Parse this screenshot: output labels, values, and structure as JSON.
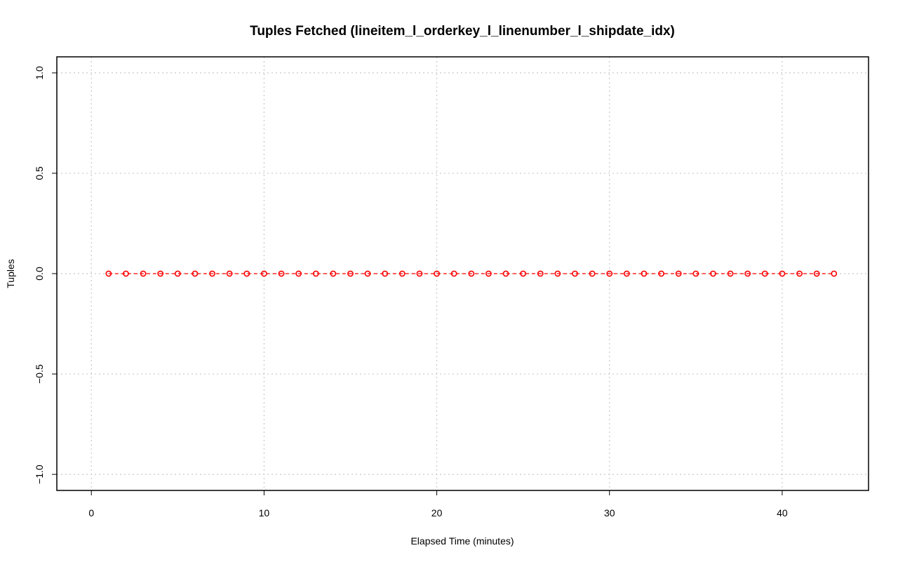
{
  "chart_data": {
    "type": "line",
    "title": "Tuples Fetched (lineitem_l_orderkey_l_linenumber_l_shipdate_idx)",
    "xlabel": "Elapsed Time (minutes)",
    "ylabel": "Tuples",
    "xlim": [
      -2,
      45
    ],
    "ylim": [
      -1.08,
      1.08
    ],
    "x_ticks": [
      0,
      10,
      20,
      30,
      40
    ],
    "x_tick_labels": [
      "0",
      "10",
      "20",
      "30",
      "40"
    ],
    "y_ticks": [
      -1.0,
      -0.5,
      0.0,
      0.5,
      1.0
    ],
    "y_tick_labels": [
      "−1.0",
      "−0.5",
      "0.0",
      "0.5",
      "1.0"
    ],
    "grid": true,
    "series": [
      {
        "color": "#ff0000",
        "marker": "open-circle",
        "line_style": "dashed",
        "x": [
          1,
          2,
          3,
          4,
          5,
          6,
          7,
          8,
          9,
          10,
          11,
          12,
          13,
          14,
          15,
          16,
          17,
          18,
          19,
          20,
          21,
          22,
          23,
          24,
          25,
          26,
          27,
          28,
          29,
          30,
          31,
          32,
          33,
          34,
          35,
          36,
          37,
          38,
          39,
          40,
          41,
          42,
          43
        ],
        "values": [
          0,
          0,
          0,
          0,
          0,
          0,
          0,
          0,
          0,
          0,
          0,
          0,
          0,
          0,
          0,
          0,
          0,
          0,
          0,
          0,
          0,
          0,
          0,
          0,
          0,
          0,
          0,
          0,
          0,
          0,
          0,
          0,
          0,
          0,
          0,
          0,
          0,
          0,
          0,
          0,
          0,
          0,
          0
        ]
      }
    ]
  }
}
